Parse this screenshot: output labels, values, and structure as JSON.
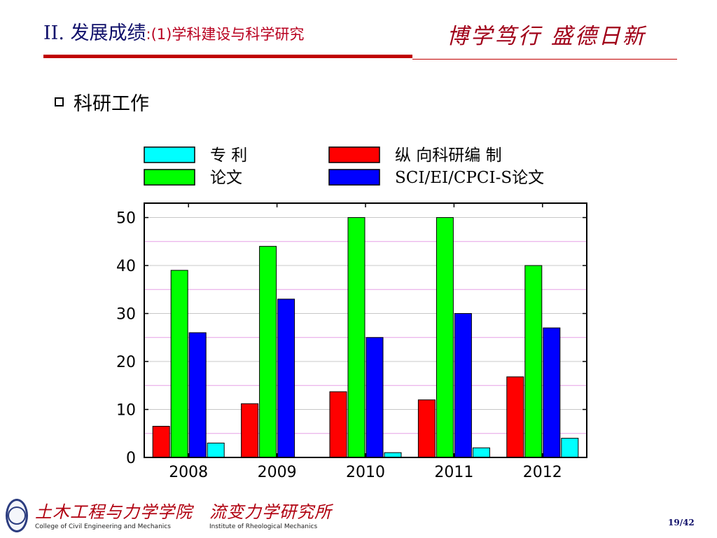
{
  "slide": {
    "title_main": "II. 发展成绩",
    "title_sub": ":(1)学科建设与科学研究",
    "motto": "博学笃行 盛德日新",
    "heading": "科研工作",
    "page_number": "19/42"
  },
  "footer": {
    "college_cn": "土木工程与力学学院",
    "college_en": "College of Civil Engineering and Mechanics",
    "institute_cn": "流变力学研究所",
    "institute_en": "Institute of Rheological Mechanics"
  },
  "chart_data": {
    "type": "bar",
    "categories": [
      "2008",
      "2009",
      "2010",
      "2011",
      "2012"
    ],
    "ylim": [
      0,
      53
    ],
    "yticks": [
      0,
      10,
      20,
      30,
      40,
      50
    ],
    "grid": true,
    "legend_position": "top",
    "series": [
      {
        "name": "纵 向科研编 制",
        "color": "#ff0000",
        "values": [
          6.5,
          11.2,
          13.7,
          12,
          16.8
        ]
      },
      {
        "name": "论文",
        "color": "#00ff00",
        "values": [
          39,
          44,
          50,
          50,
          40
        ]
      },
      {
        "name": "SCI/EI/CPCI-S论文",
        "color": "#0000ff",
        "values": [
          26,
          33,
          25,
          30,
          27
        ]
      },
      {
        "name": "专 利",
        "color": "#00ffff",
        "values": [
          3,
          0,
          1,
          2,
          4
        ]
      }
    ],
    "legend_order": [
      3,
      0,
      1,
      2
    ]
  }
}
